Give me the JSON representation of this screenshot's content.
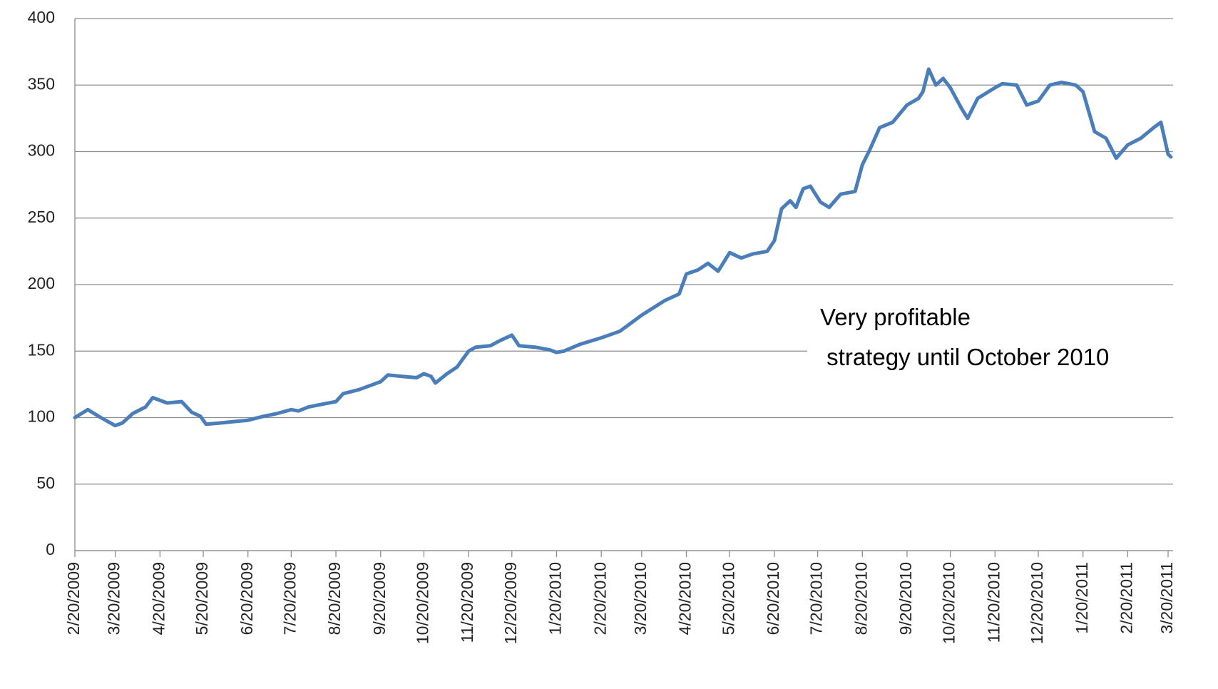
{
  "chart_data": {
    "type": "line",
    "annotation": [
      "Very profitable",
      " strategy until October 2010"
    ],
    "x": [
      "2/20/2009",
      "3/1/2009",
      "3/10/2009",
      "3/20/2009",
      "3/25/2009",
      "4/1/2009",
      "4/10/2009",
      "4/15/2009",
      "4/25/2009",
      "5/5/2009",
      "5/12/2009",
      "5/18/2009",
      "5/22/2009",
      "6/1/2009",
      "6/10/2009",
      "6/20/2009",
      "7/1/2009",
      "7/10/2009",
      "7/20/2009",
      "7/25/2009",
      "8/1/2009",
      "8/10/2009",
      "8/20/2009",
      "8/25/2009",
      "9/5/2009",
      "9/20/2009",
      "9/25/2009",
      "10/5/2009",
      "10/15/2009",
      "10/20/2009",
      "10/25/2009",
      "10/28/2009",
      "11/5/2009",
      "11/12/2009",
      "11/20/2009",
      "11/25/2009",
      "12/5/2009",
      "12/12/2009",
      "12/20/2009",
      "12/25/2009",
      "1/5/2010",
      "1/15/2010",
      "1/20/2010",
      "1/25/2010",
      "2/5/2010",
      "2/20/2010",
      "3/5/2010",
      "3/20/2010",
      "4/5/2010",
      "4/15/2010",
      "4/20/2010",
      "4/28/2010",
      "5/5/2010",
      "5/12/2010",
      "5/20/2010",
      "5/28/2010",
      "6/5/2010",
      "6/15/2010",
      "6/20/2010",
      "6/25/2010",
      "7/1/2010",
      "7/5/2010",
      "7/10/2010",
      "7/15/2010",
      "7/22/2010",
      "7/28/2010",
      "8/5/2010",
      "8/15/2010",
      "8/20/2010",
      "8/25/2010",
      "9/1/2010",
      "9/10/2010",
      "9/20/2010",
      "9/28/2010",
      "10/1/2010",
      "10/5/2010",
      "10/10/2010",
      "10/15/2010",
      "10/20/2010",
      "10/28/2010",
      "11/1/2010",
      "11/8/2010",
      "11/20/2010",
      "11/25/2010",
      "12/5/2010",
      "12/12/2010",
      "12/20/2010",
      "12/28/2010",
      "1/5/2011",
      "1/15/2011",
      "1/20/2011",
      "1/28/2011",
      "2/5/2011",
      "2/12/2011",
      "2/20/2011",
      "3/1/2011",
      "3/10/2011",
      "3/15/2011",
      "3/20/2011",
      "3/22/2011"
    ],
    "values": [
      100,
      106,
      100,
      94,
      96,
      103,
      108,
      115,
      111,
      112,
      104,
      101,
      95,
      96,
      97,
      98,
      101,
      103,
      106,
      105,
      108,
      110,
      112,
      118,
      121,
      127,
      132,
      131,
      130,
      133,
      131,
      126,
      133,
      138,
      150,
      153,
      154,
      158,
      162,
      154,
      153,
      151,
      149,
      150,
      155,
      160,
      165,
      177,
      188,
      193,
      208,
      211,
      216,
      210,
      224,
      220,
      223,
      225,
      233,
      257,
      263,
      258,
      272,
      274,
      262,
      258,
      268,
      270,
      290,
      301,
      318,
      322,
      335,
      340,
      345,
      362,
      350,
      355,
      348,
      332,
      325,
      340,
      348,
      351,
      350,
      335,
      338,
      350,
      352,
      350,
      345,
      315,
      310,
      295,
      305,
      310,
      318,
      322,
      298,
      296
    ],
    "color": "#4a7ebb",
    "xlim": [
      "2/20/2009",
      "3/22/2011"
    ],
    "xticks": [
      "2/20/2009",
      "3/20/2009",
      "4/20/2009",
      "5/20/2009",
      "6/20/2009",
      "7/20/2009",
      "8/20/2009",
      "9/20/2009",
      "10/20/2009",
      "11/20/2009",
      "12/20/2009",
      "1/20/2010",
      "2/20/2010",
      "3/20/2010",
      "4/20/2010",
      "5/20/2010",
      "6/20/2010",
      "7/20/2010",
      "8/20/2010",
      "9/20/2010",
      "10/20/2010",
      "11/20/2010",
      "12/20/2010",
      "1/20/2011",
      "2/20/2011",
      "3/20/2011"
    ],
    "ylim": [
      0,
      400
    ],
    "yticks": [
      0,
      50,
      100,
      150,
      200,
      250,
      300,
      350,
      400
    ],
    "grid": true
  }
}
